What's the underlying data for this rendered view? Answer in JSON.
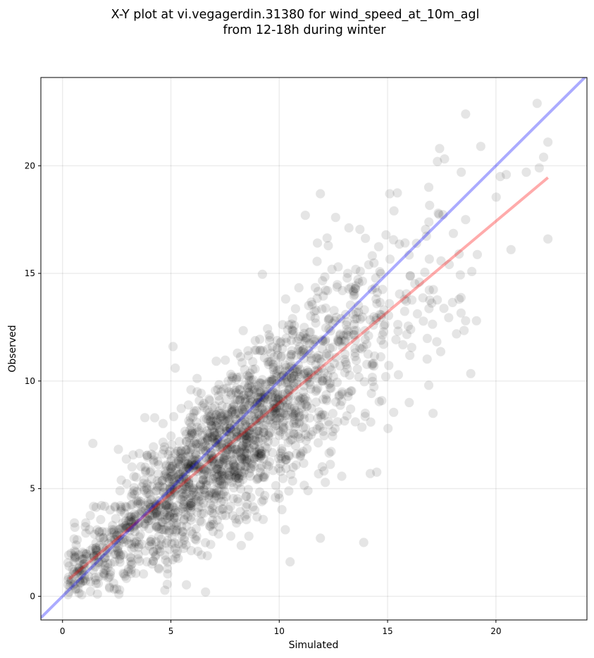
{
  "chart_data": {
    "type": "scatter",
    "title_line1": "X-Y plot at vi.vegagerdin.31380 for wind_speed_at_10m_agl",
    "title_line2": "from 12-18h during winter",
    "xlabel": "Simulated",
    "ylabel": "Observed",
    "xlim": [
      -1,
      24.2
    ],
    "ylim": [
      -1.1,
      24.1
    ],
    "xticks": [
      0,
      5,
      10,
      15,
      20
    ],
    "yticks": [
      0,
      5,
      10,
      15,
      20
    ],
    "grid": true,
    "point_color": "#000000",
    "point_alpha": 0.1,
    "sample_points": [
      {
        "x": 18.6,
        "y": 22.4
      },
      {
        "x": 21.9,
        "y": 22.9
      },
      {
        "x": 22.4,
        "y": 21.1
      },
      {
        "x": 19.3,
        "y": 20.9
      },
      {
        "x": 17.4,
        "y": 20.8
      },
      {
        "x": 17.3,
        "y": 20.2
      },
      {
        "x": 22.2,
        "y": 20.4
      },
      {
        "x": 22.0,
        "y": 19.9
      },
      {
        "x": 21.4,
        "y": 19.7
      },
      {
        "x": 18.4,
        "y": 19.7
      },
      {
        "x": 20.2,
        "y": 19.5
      },
      {
        "x": 11.9,
        "y": 18.7
      },
      {
        "x": 15.1,
        "y": 18.7
      },
      {
        "x": 16.9,
        "y": 19.0
      },
      {
        "x": 12.6,
        "y": 17.6
      },
      {
        "x": 18.6,
        "y": 17.5
      },
      {
        "x": 22.4,
        "y": 16.6
      },
      {
        "x": 18.3,
        "y": 15.9
      },
      {
        "x": 18.3,
        "y": 13.8
      },
      {
        "x": 18.6,
        "y": 12.8
      },
      {
        "x": 19.1,
        "y": 12.8
      },
      {
        "x": 17.1,
        "y": 8.5
      },
      {
        "x": 16.9,
        "y": 9.8
      },
      {
        "x": 16.0,
        "y": 9.0
      },
      {
        "x": 14.2,
        "y": 5.7
      },
      {
        "x": 13.9,
        "y": 2.5
      },
      {
        "x": 10.5,
        "y": 1.6
      },
      {
        "x": 11.9,
        "y": 2.7
      },
      {
        "x": 5.1,
        "y": 11.6
      },
      {
        "x": 5.2,
        "y": 10.6
      },
      {
        "x": 1.4,
        "y": 7.1
      },
      {
        "x": 3.8,
        "y": 8.3
      },
      {
        "x": 6.6,
        "y": 0.2
      },
      {
        "x": 2.6,
        "y": 0.1
      },
      {
        "x": 0.3,
        "y": 0.2
      },
      {
        "x": 0.3,
        "y": 1.4
      }
    ],
    "series": [
      {
        "name": "",
        "kind": "line",
        "color": "#ff0000",
        "alpha": 0.33,
        "points": [
          {
            "x": 0.3,
            "y": 0.8
          },
          {
            "x": 22.4,
            "y": 19.45
          }
        ]
      },
      {
        "name": "",
        "kind": "line",
        "color": "#0000ff",
        "alpha": 0.33,
        "points": [
          {
            "x": -1,
            "y": -1
          },
          {
            "x": 24.2,
            "y": 24.2
          }
        ]
      }
    ]
  }
}
